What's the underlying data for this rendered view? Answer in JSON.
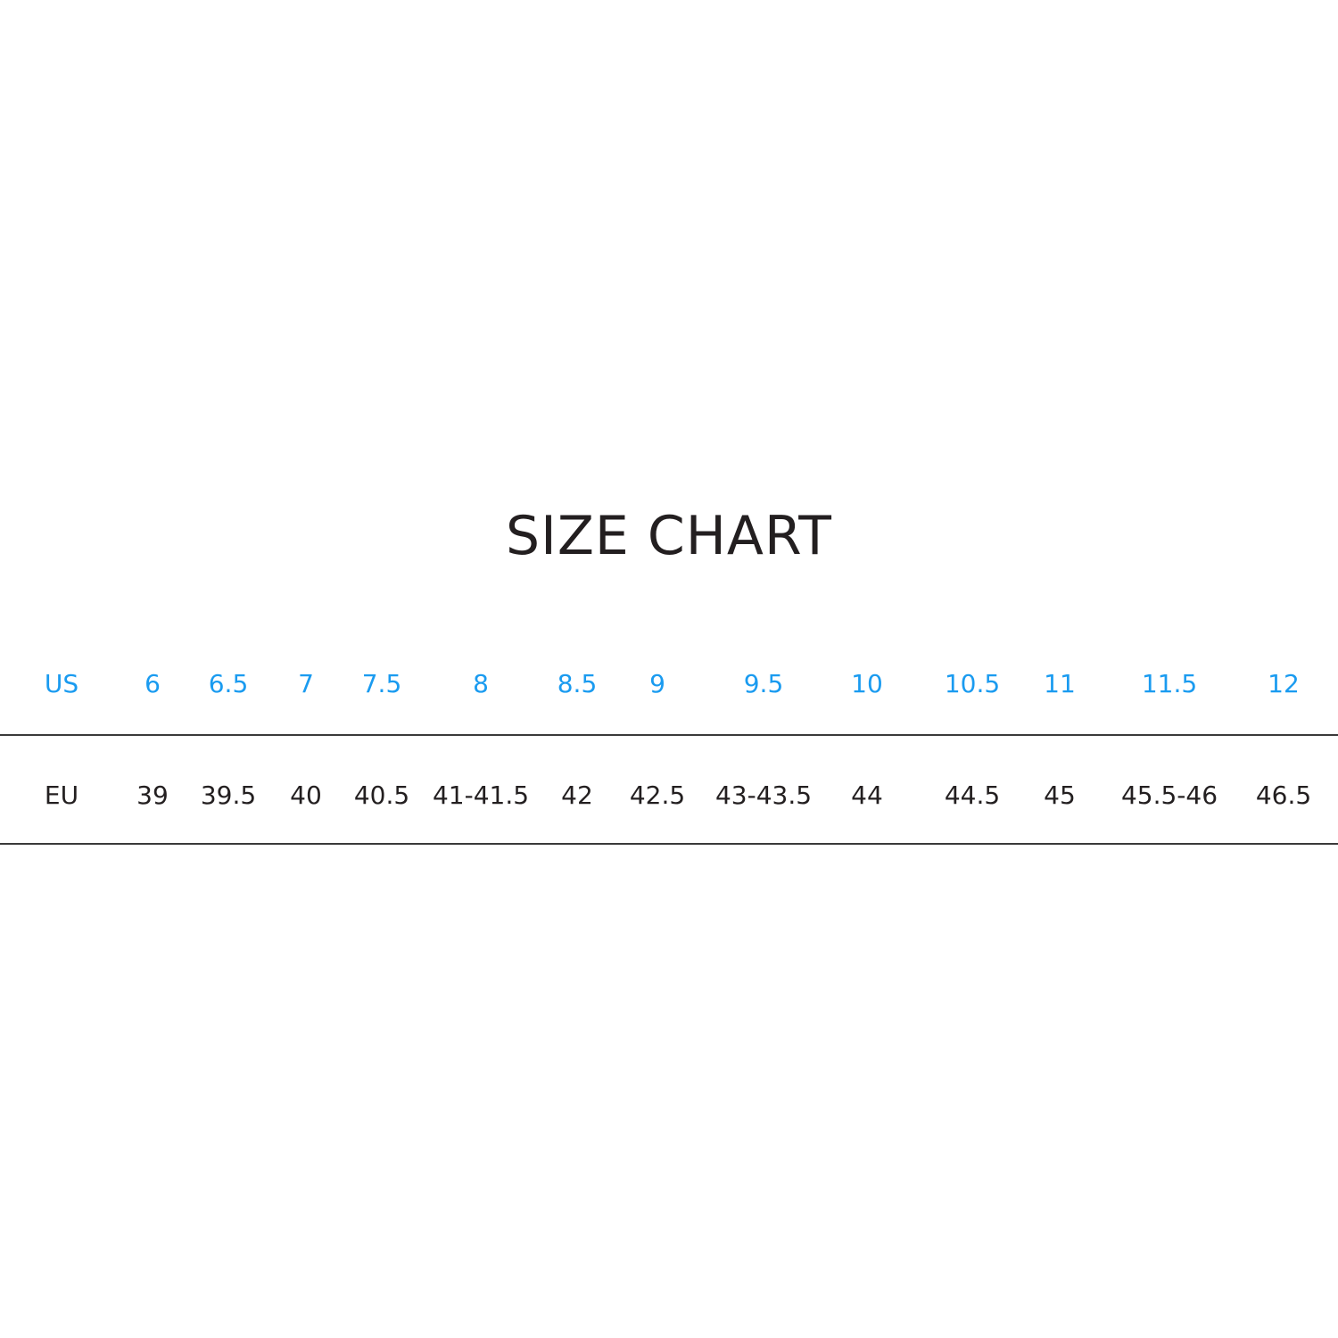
{
  "title": "SIZE CHART",
  "colors": {
    "us_row": "#1a9bf0",
    "eu_row": "#231f20"
  },
  "table": {
    "rows": [
      {
        "label": "US",
        "values": [
          "6",
          "6.5",
          "7",
          "7.5",
          "8",
          "8.5",
          "9",
          "9.5",
          "10",
          "10.5",
          "11",
          "11.5",
          "12"
        ]
      },
      {
        "label": "EU",
        "values": [
          "39",
          "39.5",
          "40",
          "40.5",
          "41-41.5",
          "42",
          "42.5",
          "43-43.5",
          "44",
          "44.5",
          "45",
          "45.5-46",
          "46.5"
        ]
      }
    ]
  }
}
